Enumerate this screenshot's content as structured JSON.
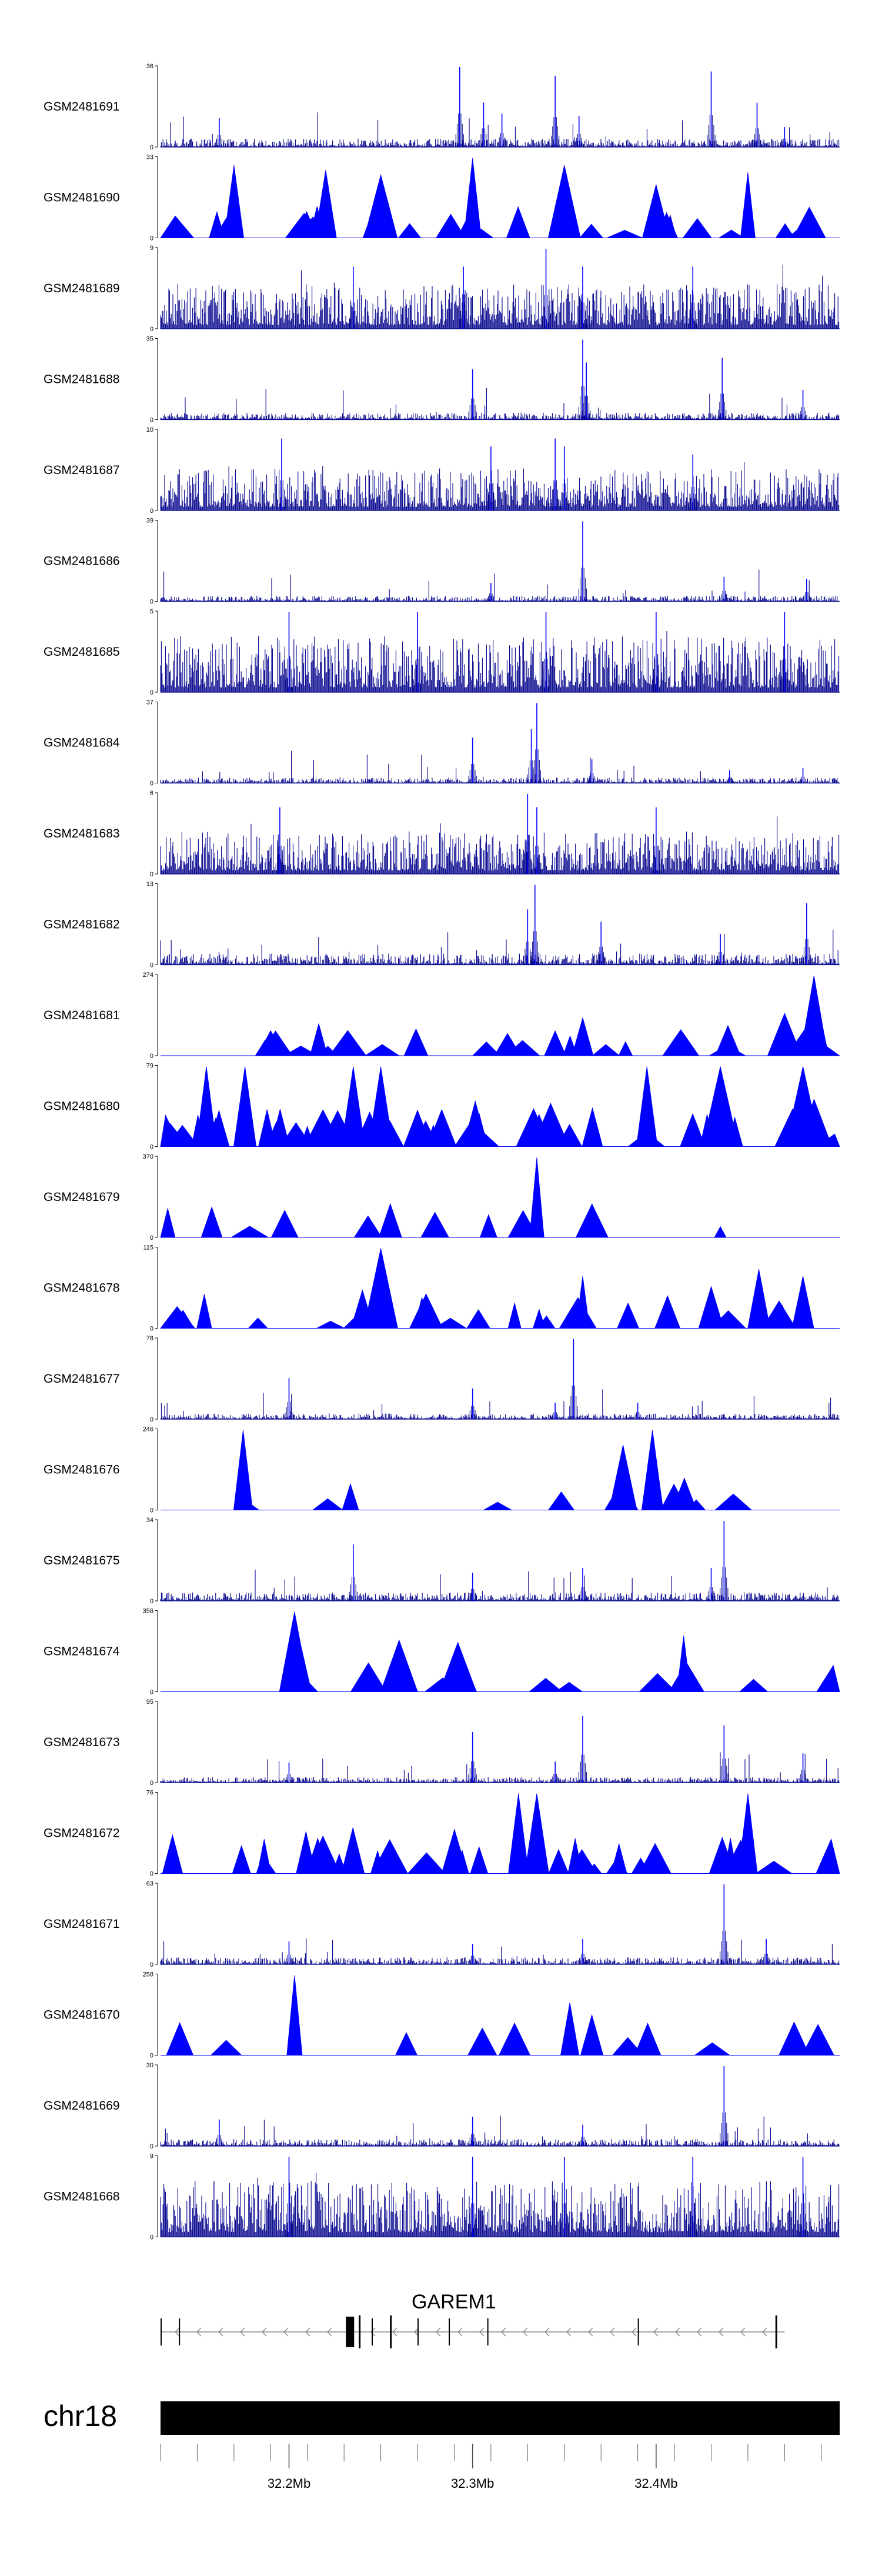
{
  "chart_data": {
    "type": "area",
    "title": "",
    "xlabel": "",
    "ylabel": "",
    "region": {
      "chromosome": "chr18",
      "start_mb": 32.13,
      "end_mb": 32.5
    },
    "color": "#0000ff",
    "dense_color": "#00008b",
    "tracks": [
      {
        "name": "GSM2481691",
        "ymax": 36,
        "style": "dense",
        "base": 0.06,
        "peaks": [
          [
            32.162,
            13
          ],
          [
            32.293,
            36
          ],
          [
            32.306,
            20
          ],
          [
            32.316,
            15
          ],
          [
            32.345,
            32
          ],
          [
            32.358,
            14
          ],
          [
            32.43,
            34
          ],
          [
            32.455,
            20
          ],
          [
            32.47,
            9
          ]
        ]
      },
      {
        "name": "GSM2481690",
        "ymax": 33,
        "style": "sparse",
        "base": 0.3,
        "peaks": [
          [
            32.17,
            30
          ],
          [
            32.22,
            28
          ],
          [
            32.25,
            26
          ],
          [
            32.3,
            33
          ],
          [
            32.35,
            30
          ],
          [
            32.4,
            22
          ],
          [
            32.45,
            27
          ]
        ]
      },
      {
        "name": "GSM2481689",
        "ymax": 9,
        "style": "dense",
        "base": 0.32,
        "peaks": [
          [
            32.235,
            7
          ],
          [
            32.295,
            7
          ],
          [
            32.34,
            9
          ],
          [
            32.36,
            7
          ],
          [
            32.42,
            7
          ]
        ]
      },
      {
        "name": "GSM2481688",
        "ymax": 35,
        "style": "dense",
        "base": 0.05,
        "peaks": [
          [
            32.3,
            22
          ],
          [
            32.36,
            35
          ],
          [
            32.362,
            25
          ],
          [
            32.436,
            27
          ],
          [
            32.48,
            13
          ]
        ]
      },
      {
        "name": "GSM2481687",
        "ymax": 10,
        "style": "dense",
        "base": 0.3,
        "peaks": [
          [
            32.196,
            9
          ],
          [
            32.31,
            8
          ],
          [
            32.345,
            9
          ],
          [
            32.35,
            8
          ],
          [
            32.42,
            7
          ]
        ]
      },
      {
        "name": "GSM2481686",
        "ymax": 39,
        "style": "dense",
        "base": 0.04,
        "peaks": [
          [
            32.31,
            9
          ],
          [
            32.36,
            39
          ],
          [
            32.437,
            12
          ],
          [
            32.482,
            11
          ]
        ]
      },
      {
        "name": "GSM2481685",
        "ymax": 5,
        "style": "dense",
        "base": 0.4,
        "peaks": [
          [
            32.2,
            5
          ],
          [
            32.27,
            5
          ],
          [
            32.34,
            5
          ],
          [
            32.4,
            5
          ],
          [
            32.47,
            5
          ]
        ]
      },
      {
        "name": "GSM2481684",
        "ymax": 37,
        "style": "dense",
        "base": 0.04,
        "peaks": [
          [
            32.3,
            21
          ],
          [
            32.335,
            37
          ],
          [
            32.332,
            25
          ],
          [
            32.365,
            11
          ],
          [
            32.44,
            6
          ],
          [
            32.48,
            7
          ]
        ]
      },
      {
        "name": "GSM2481683",
        "ymax": 6,
        "style": "dense",
        "base": 0.3,
        "peaks": [
          [
            32.195,
            5
          ],
          [
            32.33,
            6
          ],
          [
            32.335,
            5
          ],
          [
            32.4,
            5
          ]
        ]
      },
      {
        "name": "GSM2481682",
        "ymax": 13,
        "style": "dense",
        "base": 0.08,
        "peaks": [
          [
            32.334,
            13
          ],
          [
            32.33,
            9
          ],
          [
            32.37,
            7
          ],
          [
            32.435,
            5
          ],
          [
            32.482,
            10
          ]
        ]
      },
      {
        "name": "GSM2481681",
        "ymax": 274,
        "style": "sparse",
        "base": 0.28,
        "peaks": [
          [
            32.19,
            86
          ],
          [
            32.345,
            85
          ],
          [
            32.36,
            130
          ],
          [
            32.47,
            145
          ],
          [
            32.486,
            274
          ],
          [
            32.49,
            120
          ]
        ]
      },
      {
        "name": "GSM2481680",
        "ymax": 79,
        "style": "sparse",
        "base": 0.55,
        "peaks": [
          [
            32.155,
            79
          ],
          [
            32.176,
            79
          ],
          [
            32.235,
            79
          ],
          [
            32.25,
            79
          ],
          [
            32.395,
            79
          ],
          [
            32.435,
            79
          ],
          [
            32.48,
            79
          ]
        ]
      },
      {
        "name": "GSM2481679",
        "ymax": 370,
        "style": "sparse",
        "base": 0.12,
        "peaks": [
          [
            32.335,
            370
          ],
          [
            32.435,
            50
          ]
        ]
      },
      {
        "name": "GSM2481678",
        "ymax": 115,
        "style": "sparse",
        "base": 0.28,
        "peaks": [
          [
            32.25,
            115
          ],
          [
            32.24,
            55
          ],
          [
            32.36,
            75
          ],
          [
            32.43,
            60
          ],
          [
            32.456,
            85
          ],
          [
            32.48,
            75
          ]
        ]
      },
      {
        "name": "GSM2481677",
        "ymax": 78,
        "style": "dense",
        "base": 0.04,
        "peaks": [
          [
            32.2,
            40
          ],
          [
            32.3,
            30
          ],
          [
            32.355,
            78
          ],
          [
            32.345,
            16
          ],
          [
            32.39,
            16
          ]
        ]
      },
      {
        "name": "GSM2481676",
        "ymax": 246,
        "style": "sparse",
        "base": 0.0,
        "peaks": [
          [
            32.175,
            246
          ],
          [
            32.382,
            200
          ],
          [
            32.398,
            246
          ]
        ]
      },
      {
        "name": "GSM2481675",
        "ymax": 34,
        "style": "dense",
        "base": 0.06,
        "peaks": [
          [
            32.235,
            24
          ],
          [
            32.3,
            12
          ],
          [
            32.36,
            14
          ],
          [
            32.437,
            34
          ],
          [
            32.43,
            14
          ]
        ]
      },
      {
        "name": "GSM2481674",
        "ymax": 356,
        "style": "sparse",
        "base": 0.0,
        "peaks": [
          [
            32.203,
            356
          ],
          [
            32.205,
            260
          ],
          [
            32.26,
            230
          ],
          [
            32.292,
            220
          ],
          [
            32.415,
            250
          ]
        ]
      },
      {
        "name": "GSM2481673",
        "ymax": 95,
        "style": "dense",
        "base": 0.04,
        "peaks": [
          [
            32.2,
            24
          ],
          [
            32.3,
            60
          ],
          [
            32.36,
            79
          ],
          [
            32.345,
            25
          ],
          [
            32.437,
            68
          ],
          [
            32.48,
            35
          ]
        ]
      },
      {
        "name": "GSM2481672",
        "ymax": 76,
        "style": "sparse",
        "base": 0.45,
        "peaks": [
          [
            32.325,
            76
          ],
          [
            32.335,
            76
          ],
          [
            32.45,
            76
          ]
        ]
      },
      {
        "name": "GSM2481671",
        "ymax": 63,
        "style": "dense",
        "base": 0.05,
        "peaks": [
          [
            32.2,
            18
          ],
          [
            32.3,
            16
          ],
          [
            32.36,
            20
          ],
          [
            32.437,
            63
          ],
          [
            32.46,
            20
          ]
        ]
      },
      {
        "name": "GSM2481670",
        "ymax": 258,
        "style": "sparse",
        "base": 0.0,
        "peaks": [
          [
            32.203,
            258
          ],
          [
            32.353,
            170
          ],
          [
            32.365,
            130
          ]
        ]
      },
      {
        "name": "GSM2481669",
        "ymax": 30,
        "style": "dense",
        "base": 0.05,
        "peaks": [
          [
            32.162,
            10
          ],
          [
            32.3,
            11
          ],
          [
            32.36,
            8
          ],
          [
            32.437,
            30
          ]
        ]
      },
      {
        "name": "GSM2481668",
        "ymax": 9,
        "style": "dense",
        "base": 0.4,
        "peaks": [
          [
            32.2,
            9
          ],
          [
            32.3,
            9
          ],
          [
            32.35,
            9
          ],
          [
            32.42,
            9
          ],
          [
            32.48,
            9
          ]
        ]
      }
    ],
    "gene": {
      "name": "GAREM1",
      "start_mb": 32.13,
      "end_mb": 32.47,
      "strand": "-"
    },
    "xticks": [
      {
        "value": 32.2,
        "label": "32.2Mb"
      },
      {
        "value": 32.3,
        "label": "32.3Mb"
      },
      {
        "value": 32.4,
        "label": "32.4Mb"
      }
    ]
  }
}
